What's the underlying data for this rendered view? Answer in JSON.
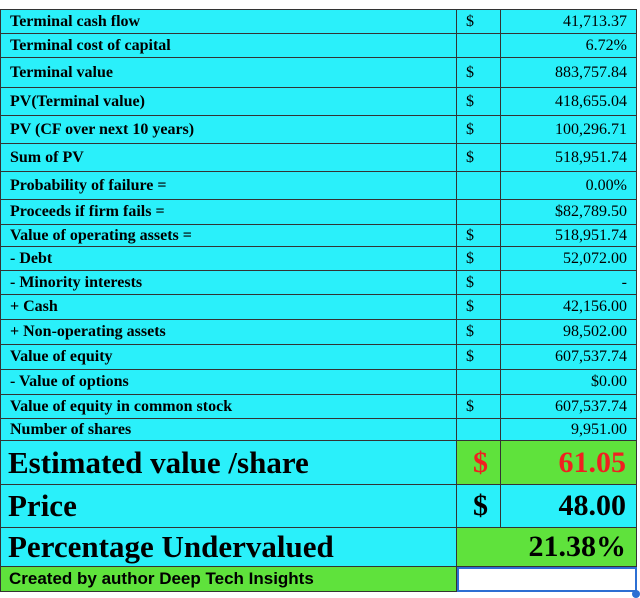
{
  "rows": [
    {
      "label": "Terminal cash flow",
      "sym": "$",
      "value": "41,713.37"
    },
    {
      "label": "Terminal cost of capital",
      "sym": "",
      "value": "6.72%"
    },
    {
      "label": "Terminal value",
      "sym": "$",
      "value": "883,757.84"
    },
    {
      "label": "PV(Terminal value)",
      "sym": "$",
      "value": "418,655.04"
    },
    {
      "label": "PV (CF over next 10 years)",
      "sym": "$",
      "value": "100,296.71"
    },
    {
      "label": "Sum of PV",
      "sym": "$",
      "value": "518,951.74"
    },
    {
      "label": "Probability of failure =",
      "sym": "",
      "value": "0.00%"
    },
    {
      "label": "Proceeds if firm fails =",
      "sym": "",
      "value": "$82,789.50"
    },
    {
      "label": "Value of operating assets =",
      "sym": "$",
      "value": "518,951.74"
    },
    {
      "label": " - Debt",
      "sym": "$",
      "value": "52,072.00"
    },
    {
      "label": " - Minority interests",
      "sym": "$",
      "value": "-"
    },
    {
      "label": " +  Cash",
      "sym": "$",
      "value": "42,156.00"
    },
    {
      "label": " + Non-operating assets",
      "sym": "$",
      "value": "98,502.00"
    },
    {
      "label": "Value of equity",
      "sym": "$",
      "value": "607,537.74"
    },
    {
      "label": " - Value of options",
      "sym": "",
      "value": "$0.00"
    },
    {
      "label": "Value of equity in common stock",
      "sym": "$",
      "value": "607,537.74"
    },
    {
      "label": "Number of shares",
      "sym": "",
      "value": "9,951.00"
    }
  ],
  "summary": {
    "estimated": {
      "label": "Estimated value /share",
      "sym": "$",
      "value": "61.05"
    },
    "price": {
      "label": "Price",
      "sym": "$",
      "value": "48.00"
    },
    "undervalued": {
      "label": "Percentage Undervalued",
      "value": "21.38%"
    }
  },
  "footer": {
    "label": "Created by author Deep Tech Insights"
  },
  "colors": {
    "cell_bg": "#2af0fa",
    "highlight_green": "#5fe23c",
    "estimate_red": "#f02020",
    "selection_blue": "#2c6fd3"
  }
}
